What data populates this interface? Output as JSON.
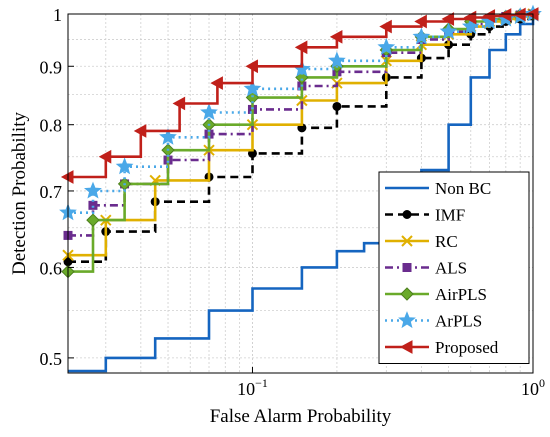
{
  "chart_data": {
    "type": "line",
    "title": "",
    "xlabel": "False Alarm Probability",
    "ylabel": "Detection Probability",
    "xscale": "log",
    "yscale": "log",
    "xlim": [
      0.022,
      1
    ],
    "ylim": [
      0.485,
      1
    ],
    "grid": true,
    "legend_position": "bottom-right",
    "x_ticks": [
      {
        "value": 0.1,
        "base": "10",
        "exp": "−1"
      },
      {
        "value": 1,
        "base": "10",
        "exp": "0"
      }
    ],
    "y_ticks": [
      {
        "value": 0.5,
        "label": "0.5"
      },
      {
        "value": 0.6,
        "label": "0.6"
      },
      {
        "value": 0.7,
        "label": "0.7"
      },
      {
        "value": 0.8,
        "label": "0.8"
      },
      {
        "value": 0.9,
        "label": "0.9"
      },
      {
        "value": 1,
        "label": "1"
      }
    ],
    "series": [
      {
        "name": "Non BC",
        "color": "#1565c0",
        "marker": "none",
        "dash": "solid",
        "x": [
          0.022,
          0.03,
          0.045,
          0.07,
          0.1,
          0.15,
          0.2,
          0.25,
          0.3,
          0.35,
          0.4,
          0.5,
          0.6,
          0.7,
          0.8,
          0.9,
          1.0
        ],
        "y": [
          0.487,
          0.5,
          0.52,
          0.55,
          0.575,
          0.6,
          0.62,
          0.63,
          0.66,
          0.7,
          0.73,
          0.8,
          0.88,
          0.93,
          0.96,
          0.98,
          1.0
        ]
      },
      {
        "name": "IMF",
        "color": "#000000",
        "marker": "circle",
        "dash": "dash",
        "x": [
          0.022,
          0.03,
          0.045,
          0.07,
          0.1,
          0.15,
          0.2,
          0.3,
          0.4,
          0.5,
          0.6,
          0.7,
          0.8,
          0.9,
          1.0
        ],
        "y": [
          0.607,
          0.645,
          0.685,
          0.72,
          0.755,
          0.795,
          0.83,
          0.88,
          0.915,
          0.94,
          0.96,
          0.975,
          0.985,
          0.99,
          1.0
        ]
      },
      {
        "name": "RC",
        "color": "#e0b000",
        "marker": "x",
        "dash": "solid",
        "x": [
          0.022,
          0.03,
          0.045,
          0.07,
          0.1,
          0.15,
          0.2,
          0.3,
          0.4,
          0.5,
          0.6,
          0.7,
          0.8,
          0.9,
          1.0
        ],
        "y": [
          0.615,
          0.66,
          0.715,
          0.76,
          0.8,
          0.84,
          0.87,
          0.91,
          0.94,
          0.96,
          0.975,
          0.985,
          0.99,
          0.995,
          1.0
        ]
      },
      {
        "name": "ALS",
        "color": "#6a2c8e",
        "marker": "square",
        "dash": "dashdot",
        "x": [
          0.022,
          0.027,
          0.035,
          0.05,
          0.07,
          0.1,
          0.15,
          0.2,
          0.3,
          0.4,
          0.5,
          0.6,
          0.7,
          0.8,
          0.9,
          1.0
        ],
        "y": [
          0.64,
          0.68,
          0.71,
          0.745,
          0.785,
          0.825,
          0.865,
          0.89,
          0.925,
          0.95,
          0.965,
          0.98,
          0.99,
          0.995,
          0.998,
          1.0
        ]
      },
      {
        "name": "AirPLS",
        "color": "#6aaa2a",
        "marker": "diamond",
        "dash": "solid",
        "x": [
          0.022,
          0.027,
          0.035,
          0.05,
          0.07,
          0.1,
          0.15,
          0.2,
          0.3,
          0.4,
          0.5,
          0.6,
          0.7,
          0.8,
          0.9,
          1.0
        ],
        "y": [
          0.595,
          0.66,
          0.71,
          0.76,
          0.8,
          0.845,
          0.88,
          0.9,
          0.93,
          0.955,
          0.97,
          0.985,
          0.99,
          0.995,
          0.998,
          1.0
        ]
      },
      {
        "name": "ArPLS",
        "color": "#4aa8e8",
        "marker": "star",
        "dash": "dot",
        "x": [
          0.022,
          0.027,
          0.035,
          0.05,
          0.07,
          0.1,
          0.15,
          0.2,
          0.3,
          0.4,
          0.5,
          0.6,
          0.7,
          0.8,
          0.9,
          1.0
        ],
        "y": [
          0.67,
          0.7,
          0.735,
          0.78,
          0.82,
          0.86,
          0.895,
          0.91,
          0.935,
          0.955,
          0.965,
          0.975,
          0.985,
          0.99,
          0.995,
          1.0
        ]
      },
      {
        "name": "Proposed",
        "color": "#c0201a",
        "marker": "triangle-left",
        "dash": "solid",
        "x": [
          0.022,
          0.03,
          0.04,
          0.055,
          0.075,
          0.1,
          0.15,
          0.2,
          0.3,
          0.4,
          0.5,
          0.6,
          0.7,
          0.8,
          0.9,
          1.0
        ],
        "y": [
          0.72,
          0.75,
          0.79,
          0.835,
          0.87,
          0.9,
          0.935,
          0.955,
          0.975,
          0.985,
          0.99,
          0.993,
          0.996,
          0.998,
          0.999,
          1.0
        ]
      }
    ]
  }
}
